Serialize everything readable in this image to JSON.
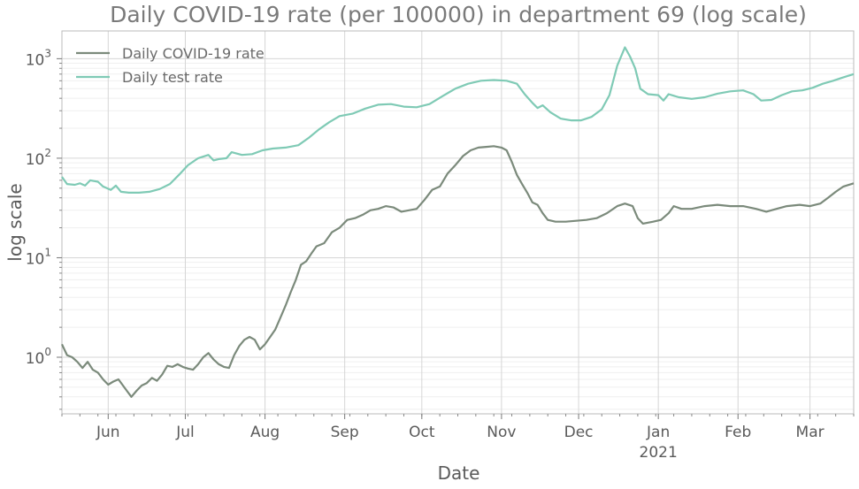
{
  "chart_data": {
    "type": "line",
    "title": "Daily COVID-19 rate (per 100000) in department 69 (log scale)",
    "xlabel": "Date",
    "ylabel": "log scale",
    "yscale": "log",
    "ylim": [
      0.27,
      1900
    ],
    "xlim": [
      "2020-05-14",
      "2021-03-18"
    ],
    "grid": true,
    "legend_position": "top-left",
    "x_ticks": [
      {
        "date": "2020-06-01",
        "label": "Jun"
      },
      {
        "date": "2020-07-01",
        "label": "Jul"
      },
      {
        "date": "2020-08-01",
        "label": "Aug"
      },
      {
        "date": "2020-09-01",
        "label": "Sep"
      },
      {
        "date": "2020-10-01",
        "label": "Oct"
      },
      {
        "date": "2020-11-01",
        "label": "Nov"
      },
      {
        "date": "2020-12-01",
        "label": "Dec"
      },
      {
        "date": "2021-01-01",
        "label": "Jan",
        "sublabel": "2021"
      },
      {
        "date": "2021-02-01",
        "label": "Feb"
      },
      {
        "date": "2021-03-01",
        "label": "Mar"
      }
    ],
    "y_ticks": [
      {
        "value": 1,
        "base": "10",
        "exp": "0"
      },
      {
        "value": 10,
        "base": "10",
        "exp": "1"
      },
      {
        "value": 100,
        "base": "10",
        "exp": "2"
      },
      {
        "value": 1000,
        "base": "10",
        "exp": "3"
      }
    ],
    "series": [
      {
        "name": "Daily COVID-19 rate",
        "color": "#7b8a7b",
        "points": [
          [
            "2020-05-14",
            1.35
          ],
          [
            "2020-05-16",
            1.05
          ],
          [
            "2020-05-18",
            1.0
          ],
          [
            "2020-05-20",
            0.9
          ],
          [
            "2020-05-22",
            0.78
          ],
          [
            "2020-05-24",
            0.9
          ],
          [
            "2020-05-26",
            0.75
          ],
          [
            "2020-05-28",
            0.7
          ],
          [
            "2020-05-30",
            0.6
          ],
          [
            "2020-06-01",
            0.53
          ],
          [
            "2020-06-03",
            0.57
          ],
          [
            "2020-06-05",
            0.6
          ],
          [
            "2020-06-08",
            0.47
          ],
          [
            "2020-06-10",
            0.4
          ],
          [
            "2020-06-12",
            0.46
          ],
          [
            "2020-06-14",
            0.52
          ],
          [
            "2020-06-16",
            0.55
          ],
          [
            "2020-06-18",
            0.62
          ],
          [
            "2020-06-20",
            0.58
          ],
          [
            "2020-06-22",
            0.67
          ],
          [
            "2020-06-24",
            0.82
          ],
          [
            "2020-06-26",
            0.8
          ],
          [
            "2020-06-28",
            0.85
          ],
          [
            "2020-06-30",
            0.8
          ],
          [
            "2020-07-02",
            0.77
          ],
          [
            "2020-07-04",
            0.75
          ],
          [
            "2020-07-06",
            0.85
          ],
          [
            "2020-07-08",
            1.0
          ],
          [
            "2020-07-10",
            1.1
          ],
          [
            "2020-07-12",
            0.95
          ],
          [
            "2020-07-14",
            0.85
          ],
          [
            "2020-07-16",
            0.8
          ],
          [
            "2020-07-18",
            0.78
          ],
          [
            "2020-07-20",
            1.05
          ],
          [
            "2020-07-22",
            1.3
          ],
          [
            "2020-07-24",
            1.5
          ],
          [
            "2020-07-26",
            1.6
          ],
          [
            "2020-07-28",
            1.5
          ],
          [
            "2020-07-30",
            1.2
          ],
          [
            "2020-08-01",
            1.35
          ],
          [
            "2020-08-03",
            1.6
          ],
          [
            "2020-08-05",
            1.9
          ],
          [
            "2020-08-07",
            2.5
          ],
          [
            "2020-08-09",
            3.3
          ],
          [
            "2020-08-11",
            4.5
          ],
          [
            "2020-08-13",
            6.0
          ],
          [
            "2020-08-15",
            8.5
          ],
          [
            "2020-08-17",
            9.2
          ],
          [
            "2020-08-19",
            11
          ],
          [
            "2020-08-21",
            13
          ],
          [
            "2020-08-24",
            14
          ],
          [
            "2020-08-27",
            18
          ],
          [
            "2020-08-30",
            20
          ],
          [
            "2020-09-02",
            24
          ],
          [
            "2020-09-05",
            25
          ],
          [
            "2020-09-08",
            27
          ],
          [
            "2020-09-11",
            30
          ],
          [
            "2020-09-14",
            31
          ],
          [
            "2020-09-17",
            33
          ],
          [
            "2020-09-20",
            32
          ],
          [
            "2020-09-23",
            29
          ],
          [
            "2020-09-26",
            30
          ],
          [
            "2020-09-29",
            31
          ],
          [
            "2020-10-02",
            38
          ],
          [
            "2020-10-05",
            48
          ],
          [
            "2020-10-08",
            52
          ],
          [
            "2020-10-11",
            70
          ],
          [
            "2020-10-14",
            85
          ],
          [
            "2020-10-17",
            105
          ],
          [
            "2020-10-20",
            120
          ],
          [
            "2020-10-23",
            128
          ],
          [
            "2020-10-26",
            130
          ],
          [
            "2020-10-29",
            132
          ],
          [
            "2020-11-01",
            128
          ],
          [
            "2020-11-03",
            120
          ],
          [
            "2020-11-05",
            92
          ],
          [
            "2020-11-07",
            68
          ],
          [
            "2020-11-09",
            55
          ],
          [
            "2020-11-11",
            45
          ],
          [
            "2020-11-13",
            36
          ],
          [
            "2020-11-15",
            34
          ],
          [
            "2020-11-17",
            28
          ],
          [
            "2020-11-19",
            24
          ],
          [
            "2020-11-22",
            23
          ],
          [
            "2020-11-26",
            23
          ],
          [
            "2020-11-30",
            23.5
          ],
          [
            "2020-12-04",
            24
          ],
          [
            "2020-12-08",
            25
          ],
          [
            "2020-12-12",
            28
          ],
          [
            "2020-12-16",
            33
          ],
          [
            "2020-12-19",
            35
          ],
          [
            "2020-12-22",
            33
          ],
          [
            "2020-12-24",
            25
          ],
          [
            "2020-12-26",
            22
          ],
          [
            "2020-12-28",
            22.5
          ],
          [
            "2020-12-30",
            23
          ],
          [
            "2021-01-02",
            24
          ],
          [
            "2021-01-05",
            28
          ],
          [
            "2021-01-07",
            33
          ],
          [
            "2021-01-10",
            31
          ],
          [
            "2021-01-14",
            31
          ],
          [
            "2021-01-19",
            33
          ],
          [
            "2021-01-24",
            34
          ],
          [
            "2021-01-29",
            33
          ],
          [
            "2021-02-03",
            33
          ],
          [
            "2021-02-08",
            31
          ],
          [
            "2021-02-12",
            29
          ],
          [
            "2021-02-16",
            31
          ],
          [
            "2021-02-20",
            33
          ],
          [
            "2021-02-25",
            34
          ],
          [
            "2021-03-01",
            33
          ],
          [
            "2021-03-05",
            35
          ],
          [
            "2021-03-08",
            40
          ],
          [
            "2021-03-11",
            46
          ],
          [
            "2021-03-14",
            52
          ],
          [
            "2021-03-18",
            56
          ]
        ]
      },
      {
        "name": "Daily test rate",
        "color": "#7fcab5",
        "points": [
          [
            "2020-05-14",
            65
          ],
          [
            "2020-05-16",
            55
          ],
          [
            "2020-05-19",
            54
          ],
          [
            "2020-05-21",
            56
          ],
          [
            "2020-05-23",
            53
          ],
          [
            "2020-05-25",
            60
          ],
          [
            "2020-05-28",
            58
          ],
          [
            "2020-05-30",
            52
          ],
          [
            "2020-06-02",
            48
          ],
          [
            "2020-06-04",
            53
          ],
          [
            "2020-06-06",
            46
          ],
          [
            "2020-06-09",
            45
          ],
          [
            "2020-06-13",
            45
          ],
          [
            "2020-06-17",
            46
          ],
          [
            "2020-06-21",
            49
          ],
          [
            "2020-06-25",
            55
          ],
          [
            "2020-06-29",
            70
          ],
          [
            "2020-07-02",
            85
          ],
          [
            "2020-07-06",
            100
          ],
          [
            "2020-07-10",
            108
          ],
          [
            "2020-07-12",
            95
          ],
          [
            "2020-07-14",
            98
          ],
          [
            "2020-07-17",
            100
          ],
          [
            "2020-07-19",
            115
          ],
          [
            "2020-07-23",
            108
          ],
          [
            "2020-07-27",
            110
          ],
          [
            "2020-07-31",
            120
          ],
          [
            "2020-08-04",
            125
          ],
          [
            "2020-08-09",
            128
          ],
          [
            "2020-08-14",
            135
          ],
          [
            "2020-08-18",
            160
          ],
          [
            "2020-08-22",
            195
          ],
          [
            "2020-08-26",
            230
          ],
          [
            "2020-08-30",
            265
          ],
          [
            "2020-09-04",
            280
          ],
          [
            "2020-09-09",
            315
          ],
          [
            "2020-09-14",
            345
          ],
          [
            "2020-09-19",
            350
          ],
          [
            "2020-09-24",
            330
          ],
          [
            "2020-09-29",
            325
          ],
          [
            "2020-10-04",
            350
          ],
          [
            "2020-10-09",
            420
          ],
          [
            "2020-10-14",
            500
          ],
          [
            "2020-10-19",
            560
          ],
          [
            "2020-10-24",
            600
          ],
          [
            "2020-10-29",
            610
          ],
          [
            "2020-11-03",
            600
          ],
          [
            "2020-11-07",
            560
          ],
          [
            "2020-11-10",
            440
          ],
          [
            "2020-11-13",
            360
          ],
          [
            "2020-11-15",
            320
          ],
          [
            "2020-11-17",
            340
          ],
          [
            "2020-11-20",
            290
          ],
          [
            "2020-11-24",
            250
          ],
          [
            "2020-11-28",
            240
          ],
          [
            "2020-12-02",
            240
          ],
          [
            "2020-12-06",
            260
          ],
          [
            "2020-12-10",
            310
          ],
          [
            "2020-12-13",
            430
          ],
          [
            "2020-12-16",
            850
          ],
          [
            "2020-12-19",
            1300
          ],
          [
            "2020-12-21",
            1050
          ],
          [
            "2020-12-23",
            800
          ],
          [
            "2020-12-25",
            500
          ],
          [
            "2020-12-28",
            440
          ],
          [
            "2021-01-01",
            430
          ],
          [
            "2021-01-03",
            380
          ],
          [
            "2021-01-05",
            440
          ],
          [
            "2021-01-09",
            410
          ],
          [
            "2021-01-14",
            395
          ],
          [
            "2021-01-19",
            410
          ],
          [
            "2021-01-24",
            445
          ],
          [
            "2021-01-29",
            470
          ],
          [
            "2021-02-03",
            480
          ],
          [
            "2021-02-07",
            440
          ],
          [
            "2021-02-10",
            380
          ],
          [
            "2021-02-14",
            385
          ],
          [
            "2021-02-18",
            430
          ],
          [
            "2021-02-22",
            470
          ],
          [
            "2021-02-26",
            480
          ],
          [
            "2021-03-02",
            510
          ],
          [
            "2021-03-06",
            560
          ],
          [
            "2021-03-10",
            600
          ],
          [
            "2021-03-14",
            650
          ],
          [
            "2021-03-18",
            700
          ]
        ]
      }
    ]
  }
}
